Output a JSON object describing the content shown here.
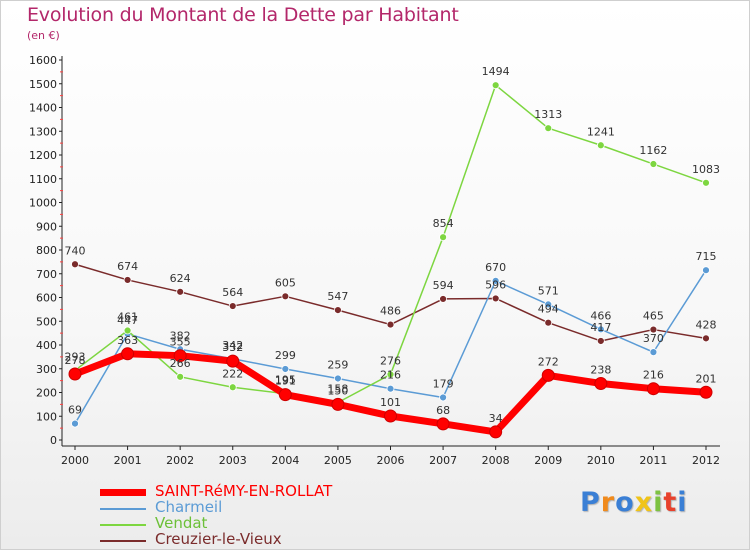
{
  "header": {
    "title": "Evolution du Montant de la Dette par Habitant",
    "subtitle": "(en €)"
  },
  "logo": {
    "text": "Proxiti"
  },
  "chart_data": {
    "type": "line",
    "title": "Evolution du Montant de la Dette par Habitant",
    "subtitle": "(en €)",
    "x": [
      "2000",
      "2001",
      "2002",
      "2003",
      "2004",
      "2005",
      "2006",
      "2007",
      "2008",
      "2009",
      "2010",
      "2011",
      "2012"
    ],
    "ylim": [
      0,
      1600
    ],
    "yticks": [
      0,
      100,
      200,
      300,
      400,
      500,
      600,
      700,
      800,
      900,
      1000,
      1100,
      1200,
      1300,
      1400,
      1500,
      1600
    ],
    "grid": false,
    "legend_position": "bottom",
    "series": [
      {
        "name": "SAINT-RéMY-EN-ROLLAT",
        "color": "#ff0000",
        "values": [
          278,
          363,
          355,
          332,
          191,
          150,
          101,
          68,
          34,
          272,
          238,
          216,
          201
        ]
      },
      {
        "name": "Charmeil",
        "color": "#5b9bd5",
        "values": [
          69,
          447,
          382,
          342,
          299,
          259,
          216,
          179,
          670,
          571,
          466,
          370,
          715
        ]
      },
      {
        "name": "Vendat",
        "color": "#7dd640",
        "values": [
          293,
          461,
          266,
          222,
          195,
          158,
          276,
          854,
          1494,
          1313,
          1241,
          1162,
          1083
        ]
      },
      {
        "name": "Creuzier-le-Vieux",
        "color": "#7a2b2b",
        "values": [
          740,
          674,
          624,
          564,
          605,
          547,
          486,
          594,
          596,
          494,
          417,
          465,
          428
        ]
      }
    ]
  }
}
